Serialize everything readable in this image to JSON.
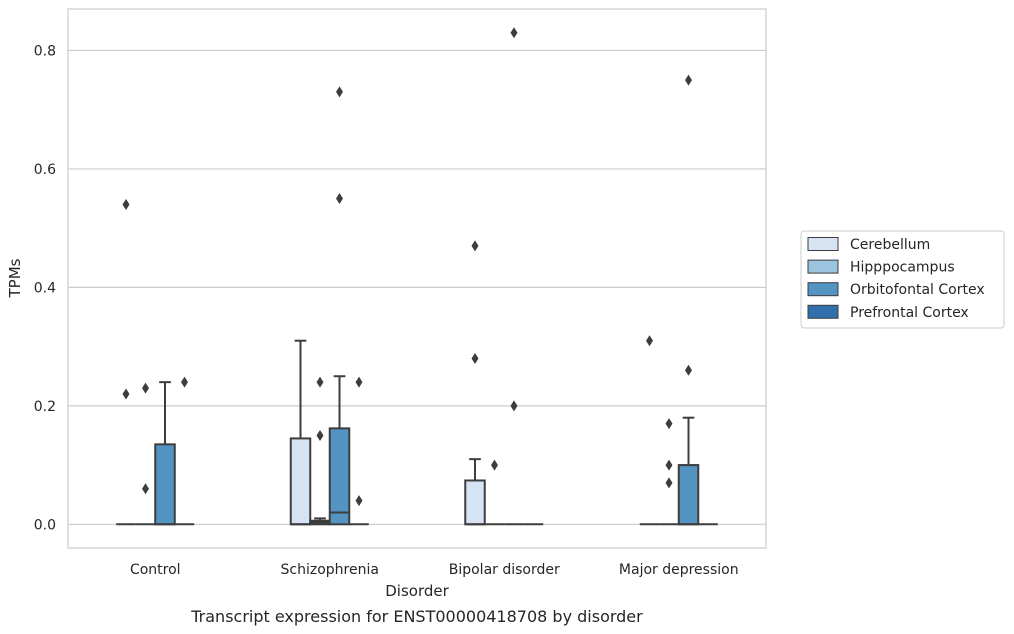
{
  "caption": "Transcript expression for ENST00000418708 by disorder",
  "chart_data": {
    "type": "box",
    "xlabel": "Disorder",
    "ylabel": "TPMs",
    "categories": [
      "Control",
      "Schizophrenia",
      "Bipolar disorder",
      "Major depression"
    ],
    "ylim": [
      -0.04,
      0.87
    ],
    "yticks": [
      0.0,
      0.2,
      0.4,
      0.6,
      0.8
    ],
    "ytick_labels": [
      "0.0",
      "0.2",
      "0.4",
      "0.6",
      "0.8"
    ],
    "grid": true,
    "legend_placement": "right-outside",
    "series": [
      {
        "name": "Cerebellum",
        "color": "#d6e3f2",
        "boxes": [
          {
            "q1": 0,
            "median": 0,
            "q3": 0,
            "whisker_low": 0,
            "whisker_high": 0,
            "outliers": [
              0.54,
              0.22
            ]
          },
          {
            "q1": 0,
            "median": 0,
            "q3": 0.145,
            "whisker_low": 0,
            "whisker_high": 0.31,
            "outliers": []
          },
          {
            "q1": 0,
            "median": 0,
            "q3": 0.074,
            "whisker_low": 0,
            "whisker_high": 0.11,
            "outliers": [
              0.47,
              0.28
            ]
          },
          {
            "q1": 0,
            "median": 0,
            "q3": 0,
            "whisker_low": 0,
            "whisker_high": 0,
            "outliers": [
              0.31
            ]
          }
        ]
      },
      {
        "name": "Hipppocampus",
        "color": "#9bc4df",
        "boxes": [
          {
            "q1": 0,
            "median": 0,
            "q3": 0,
            "whisker_low": 0,
            "whisker_high": 0,
            "outliers": [
              0.23,
              0.06
            ]
          },
          {
            "q1": 0,
            "median": 0.003,
            "q3": 0.006,
            "whisker_low": 0,
            "whisker_high": 0.01,
            "outliers": [
              0.24,
              0.15
            ]
          },
          {
            "q1": 0,
            "median": 0,
            "q3": 0,
            "whisker_low": 0,
            "whisker_high": 0,
            "outliers": [
              0.1
            ]
          },
          {
            "q1": 0,
            "median": 0,
            "q3": 0,
            "whisker_low": 0,
            "whisker_high": 0,
            "outliers": [
              0.17,
              0.1,
              0.07
            ]
          }
        ]
      },
      {
        "name": "Orbitofontal Cortex",
        "color": "#5494c2",
        "boxes": [
          {
            "q1": 0,
            "median": 0,
            "q3": 0.135,
            "whisker_low": 0,
            "whisker_high": 0.24,
            "outliers": []
          },
          {
            "q1": 0,
            "median": 0.02,
            "q3": 0.162,
            "whisker_low": 0,
            "whisker_high": 0.25,
            "outliers": [
              0.73,
              0.55
            ]
          },
          {
            "q1": 0,
            "median": 0,
            "q3": 0,
            "whisker_low": 0,
            "whisker_high": 0,
            "outliers": [
              0.83,
              0.2
            ]
          },
          {
            "q1": 0,
            "median": 0,
            "q3": 0.1,
            "whisker_low": 0,
            "whisker_high": 0.18,
            "outliers": [
              0.75,
              0.26
            ]
          }
        ]
      },
      {
        "name": "Prefrontal Cortex",
        "color": "#2e6fac",
        "boxes": [
          {
            "q1": 0,
            "median": 0,
            "q3": 0,
            "whisker_low": 0,
            "whisker_high": 0,
            "outliers": [
              0.24
            ]
          },
          {
            "q1": 0,
            "median": 0,
            "q3": 0,
            "whisker_low": 0,
            "whisker_high": 0,
            "outliers": [
              0.24,
              0.04
            ]
          },
          {
            "q1": 0,
            "median": 0,
            "q3": 0,
            "whisker_low": 0,
            "whisker_high": 0,
            "outliers": []
          },
          {
            "q1": 0,
            "median": 0,
            "q3": 0,
            "whisker_low": 0,
            "whisker_high": 0,
            "outliers": []
          }
        ]
      }
    ]
  }
}
